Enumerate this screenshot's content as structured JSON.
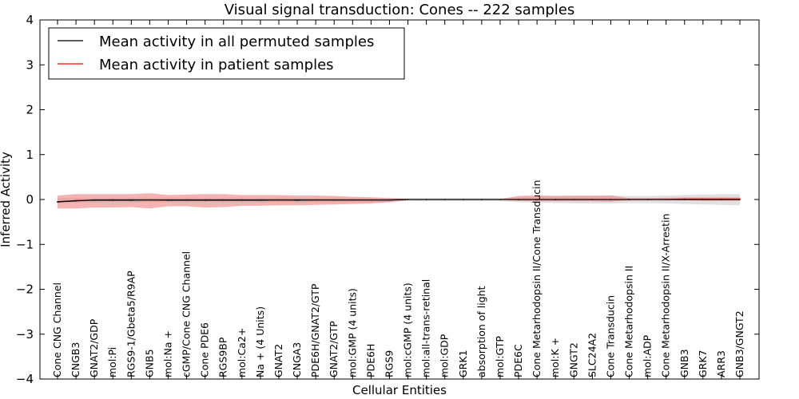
{
  "chart_data": {
    "type": "line",
    "title": "Visual signal transduction: Cones -- 222 samples",
    "xlabel": "Cellular Entities",
    "ylabel": "Inferred Activity",
    "ylim": [
      -4,
      4
    ],
    "yticks": [
      4,
      3,
      2,
      1,
      0,
      -1,
      -2,
      -3,
      -4
    ],
    "ytick_labels": [
      "4",
      "3",
      "2",
      "1",
      "0",
      "−1",
      "−2",
      "−3",
      "−4"
    ],
    "grid": false,
    "legend_position": "top-left",
    "categories": [
      "Cone CNG Channel",
      "CNGB3",
      "GNAT2/GDP",
      "mol:Pi",
      "RGS9-1/Gbeta5/R9AP",
      "GNB5",
      "mol:Na +",
      "cGMP/Cone CNG Channel",
      "Cone PDE6",
      "RGS9BP",
      "mol:Ca2+",
      "Na + (4 Units)",
      "GNAT2",
      "CNGA3",
      "PDE6H/GNAT2/GTP",
      "GNAT2/GTP",
      "mol:GMP (4 units)",
      "PDE6H",
      "RGS9",
      "mol:cGMP (4 units)",
      "mol:all-trans-retinal",
      "mol:GDP",
      "GRK1",
      "absorption of light",
      "mol:GTP",
      "PDE6C",
      "Cone Metarhodopsin II/Cone Transducin",
      "mol:K +",
      "GNGT2",
      "SLC24A2",
      "Cone Transducin",
      "Cone Metarhodopsin II",
      "mol:ADP",
      "Cone Metarhodopsin II/X-Arrestin",
      "GNB3",
      "GRK7",
      "ARR3",
      "GNB3/GNGT2"
    ],
    "series": [
      {
        "name": "Mean activity in all permuted samples",
        "color": "#000000",
        "values": [
          -0.05,
          -0.03,
          -0.01,
          -0.01,
          -0.01,
          -0.01,
          -0.01,
          -0.01,
          -0.01,
          -0.01,
          -0.01,
          -0.01,
          -0.01,
          -0.01,
          -0.01,
          -0.01,
          -0.01,
          -0.01,
          -0.01,
          0.0,
          0.0,
          0.0,
          0.0,
          0.0,
          0.0,
          0.0,
          0.0,
          0.0,
          0.0,
          0.0,
          0.0,
          0.0,
          0.0,
          0.0,
          0.0,
          0.0,
          0.0,
          0.0
        ],
        "band_low": [
          -0.08,
          -0.07,
          -0.06,
          -0.06,
          -0.06,
          -0.06,
          -0.06,
          -0.06,
          -0.06,
          -0.06,
          -0.06,
          -0.06,
          -0.06,
          -0.06,
          -0.06,
          -0.06,
          -0.06,
          -0.06,
          -0.06,
          -0.03,
          -0.04,
          -0.04,
          -0.04,
          -0.04,
          -0.04,
          -0.06,
          -0.07,
          -0.08,
          -0.09,
          -0.09,
          -0.09,
          -0.08,
          -0.08,
          -0.09,
          -0.1,
          -0.11,
          -0.12,
          -0.13
        ],
        "band_high": [
          0.03,
          0.04,
          0.04,
          0.04,
          0.04,
          0.04,
          0.04,
          0.04,
          0.04,
          0.04,
          0.04,
          0.04,
          0.04,
          0.04,
          0.04,
          0.04,
          0.04,
          0.04,
          0.04,
          0.03,
          0.03,
          0.03,
          0.03,
          0.03,
          0.03,
          0.05,
          0.07,
          0.08,
          0.09,
          0.09,
          0.09,
          0.08,
          0.08,
          0.09,
          0.1,
          0.11,
          0.12,
          0.12
        ]
      },
      {
        "name": "Mean activity in patient samples",
        "color": "#ff0000",
        "band_color": "#f08080",
        "values": [
          -0.06,
          -0.02,
          -0.02,
          -0.02,
          -0.02,
          -0.01,
          -0.02,
          -0.02,
          -0.02,
          -0.02,
          -0.02,
          -0.02,
          -0.01,
          -0.02,
          -0.01,
          -0.01,
          -0.01,
          -0.01,
          -0.01,
          0.0,
          0.0,
          0.0,
          0.0,
          0.0,
          0.0,
          0.0,
          0.0,
          0.0,
          0.0,
          0.0,
          0.0,
          0.0,
          0.0,
          0.0,
          0.01,
          0.01,
          0.01,
          0.01
        ],
        "band_low": [
          -0.2,
          -0.2,
          -0.18,
          -0.18,
          -0.17,
          -0.2,
          -0.15,
          -0.15,
          -0.18,
          -0.17,
          -0.14,
          -0.14,
          -0.13,
          -0.13,
          -0.12,
          -0.11,
          -0.1,
          -0.09,
          -0.06,
          -0.01,
          -0.01,
          -0.01,
          -0.01,
          -0.01,
          -0.01,
          -0.03,
          -0.04,
          -0.04,
          -0.04,
          -0.04,
          -0.05,
          -0.02,
          -0.02,
          -0.02,
          -0.02,
          -0.03,
          -0.03,
          -0.03
        ],
        "band_high": [
          0.09,
          0.12,
          0.12,
          0.12,
          0.12,
          0.14,
          0.1,
          0.11,
          0.12,
          0.12,
          0.1,
          0.1,
          0.1,
          0.09,
          0.09,
          0.08,
          0.06,
          0.05,
          0.03,
          0.01,
          0.01,
          0.01,
          0.01,
          0.01,
          0.01,
          0.08,
          0.09,
          0.08,
          0.08,
          0.08,
          0.09,
          0.03,
          0.03,
          0.04,
          0.05,
          0.05,
          0.05,
          0.05
        ]
      }
    ]
  }
}
